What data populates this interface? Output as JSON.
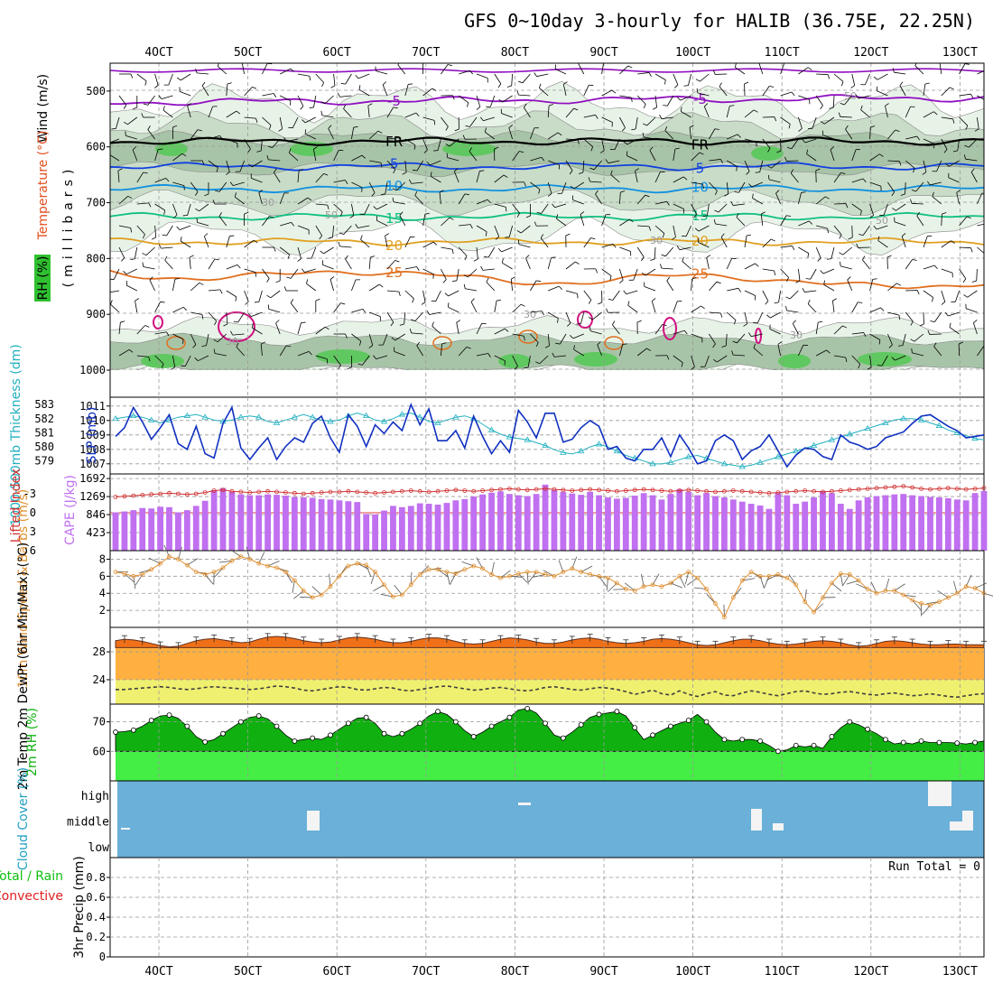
{
  "title": "GFS 0~10day 3-hourly for HALIB (36.75E, 22.25N)",
  "date_labels": [
    "4OCT",
    "5OCT",
    "6OCT",
    "7OCT",
    "8OCT",
    "9OCT",
    "10OCT",
    "11OCT",
    "12OCT",
    "13OCT"
  ],
  "colors": {
    "purple": "#9010c0",
    "black": "#000000",
    "blue": "#1040e0",
    "lightblue": "#1090e0",
    "teal": "#10c080",
    "gold": "#e0a020",
    "orange": "#e07020",
    "magenta": "#d01080",
    "cyan": "#20b0c0",
    "navy": "#1030c0",
    "cape": "#c070f0",
    "lifted": "#d03030",
    "wind10m": "#e09030",
    "temp_fill": "#f07018",
    "temp_mid": "#ffb040",
    "dew_fill": "#f0f070",
    "rh_dark": "#10b010",
    "rh_light": "#44ee44",
    "cloud": "#6ab0d8",
    "precip_green": "#10c010",
    "precip_red": "#e02020"
  },
  "chart_data": [
    {
      "id": "upper_air",
      "type": "heatmap",
      "ylabel": "(millibars)",
      "legend_labels": [
        "Wind (m/s)",
        "Temperature (°C)",
        "RH (%)"
      ],
      "y_ticks": [
        "500",
        "600",
        "700",
        "800",
        "900",
        "1000"
      ],
      "ylim": [
        450,
        1000
      ],
      "isotherms": [
        {
          "label": "-5",
          "level_mb": 520
        },
        {
          "label": "FR",
          "level_mb": 590
        },
        {
          "label": "5",
          "level_mb": 635
        },
        {
          "label": "10",
          "level_mb": 675
        },
        {
          "label": "15",
          "level_mb": 725
        },
        {
          "label": "20",
          "level_mb": 770
        },
        {
          "label": "25",
          "level_mb": 825
        }
      ],
      "rh_labels": [
        "30",
        "50"
      ]
    },
    {
      "id": "slp_thickness",
      "type": "line",
      "ylabel_left": "1000-500mb Thickness (dm)",
      "ylabel_right": "SLP (mb)",
      "left_ticks": [
        "579",
        "580",
        "581",
        "582",
        "583"
      ],
      "right_ticks": [
        "1007",
        "1008",
        "1009",
        "1010",
        "1011"
      ],
      "series": [
        {
          "name": "SLP (mb)",
          "values": [
            1008.9,
            1009.5,
            1010.9,
            1009.9,
            1008.7,
            1009.5,
            1010.4,
            1008.4,
            1008.0,
            1009.6,
            1007.7,
            1007.4,
            1009.8,
            1010.9,
            1008.1,
            1007.3,
            1008.1,
            1008.8,
            1007.3,
            1008.2,
            1008.8,
            1008.5,
            1009.8,
            1010.3,
            1008.8,
            1007.8,
            1010.4,
            1009.6,
            1008.2,
            1009.7,
            1009.1,
            1009.9,
            1009.3,
            1011.1,
            1009.7,
            1010.8,
            1008.6,
            1008.6,
            1009.3,
            1008.1,
            1010.3,
            1008.9,
            1007.7,
            1008.6,
            1007.8,
            1010.7,
            1009.9,
            1008.8,
            1010.5,
            1010.5,
            1008.5,
            1008.7,
            1009.5,
            1010.0,
            1009.6,
            1008.0,
            1008.2,
            1007.4,
            1007.2,
            1008.0,
            1008.0,
            1008.8,
            1007.5,
            1009.0,
            1008.1,
            1007.0,
            1007.2,
            1008.6,
            1009.0,
            1008.6,
            1007.3,
            1007.9,
            1008.2,
            1009.0,
            1007.9,
            1006.8,
            1007.6,
            1008.1,
            1008.0,
            1007.5,
            1007.3,
            1009.0,
            1008.5,
            1008.3,
            1008.0,
            1008.2,
            1008.8,
            1009.0,
            1009.2,
            1009.8,
            1010.3,
            1010.4,
            1010.0,
            1009.6,
            1009.3,
            1008.8,
            1008.9,
            1009.0
          ]
        },
        {
          "name": "1000-500mb Thickness (dm)",
          "values": [
            582.0,
            582.1,
            582.2,
            582.1,
            581.9,
            581.7,
            581.9,
            582.1,
            582.2,
            582.3,
            582.1,
            581.9,
            581.8,
            581.9,
            582.1,
            582.2,
            582.1,
            581.8,
            581.7,
            581.9,
            582.1,
            582.3,
            582.1,
            581.9,
            581.8,
            581.9,
            582.2,
            582.4,
            582.2,
            581.9,
            581.8,
            582.0,
            582.3,
            582.4,
            582.1,
            581.8,
            581.7,
            581.9,
            582.1,
            582.2,
            582.0,
            581.6,
            581.2,
            580.9,
            580.7,
            580.6,
            580.5,
            580.3,
            580.1,
            579.8,
            579.6,
            579.5,
            579.7,
            580.0,
            580.2,
            580.0,
            579.7,
            579.4,
            579.2,
            579.0,
            578.8,
            578.8,
            578.9,
            579.1,
            579.3,
            579.4,
            579.2,
            579.0,
            578.8,
            578.7,
            578.6,
            578.7,
            578.9,
            579.1,
            579.3,
            579.5,
            579.7,
            579.9,
            580.1,
            580.3,
            580.5,
            580.7,
            580.9,
            581.1,
            581.3,
            581.5,
            581.7,
            581.9,
            582.0,
            582.0,
            581.9,
            581.7,
            581.5,
            581.2,
            581.0,
            580.8,
            580.6,
            580.5
          ]
        }
      ]
    },
    {
      "id": "cape_lifted",
      "type": "bar",
      "ylabel_left": "Lifted Index",
      "ylabel_right": "CAPE (J/kg)",
      "left_ticks": [
        "-3",
        "0",
        "3",
        "6"
      ],
      "right_ticks": [
        "423",
        "846",
        "1269",
        "1692"
      ],
      "series": [
        {
          "name": "CAPE (J/kg)",
          "values": [
            900,
            920,
            950,
            1000,
            990,
            1030,
            1020,
            900,
            950,
            1050,
            1170,
            1420,
            1470,
            1380,
            1320,
            1300,
            1300,
            1320,
            1310,
            1290,
            1260,
            1250,
            1240,
            1210,
            1200,
            1180,
            1160,
            1140,
            860,
            850,
            940,
            1050,
            1020,
            1050,
            1110,
            1100,
            1080,
            1120,
            1180,
            1210,
            1270,
            1320,
            1360,
            1390,
            1330,
            1300,
            1280,
            1330,
            1550,
            1420,
            1380,
            1340,
            1310,
            1380,
            1300,
            1250,
            1220,
            1240,
            1290,
            1350,
            1300,
            1200,
            1330,
            1440,
            1380,
            1300,
            1350,
            1280,
            1250,
            1200,
            1150,
            1100,
            1060,
            980,
            1350,
            1300,
            1100,
            1150,
            1250,
            1400,
            1350,
            1100,
            980,
            1180,
            1250,
            1280,
            1300,
            1320,
            1330,
            1300,
            1280,
            1260,
            1250,
            1230,
            1200,
            1180,
            1350,
            1400
          ]
        },
        {
          "name": "Lifted Index",
          "values": [
            -2.5,
            -2.6,
            -2.7,
            -2.8,
            -2.9,
            -3.0,
            -3.1,
            -3.0,
            -2.9,
            -3.0,
            -3.2,
            -3.5,
            -3.6,
            -3.4,
            -3.3,
            -3.2,
            -3.3,
            -3.4,
            -3.3,
            -3.2,
            -3.1,
            -3.0,
            -3.1,
            -3.2,
            -3.3,
            -3.3,
            -3.4,
            -3.3,
            -3.2,
            -3.1,
            -3.2,
            -3.3,
            -3.4,
            -3.5,
            -3.4,
            -3.3,
            -3.4,
            -3.5,
            -3.6,
            -3.5,
            -3.4,
            -3.5,
            -3.6,
            -3.7,
            -3.8,
            -3.7,
            -3.6,
            -3.7,
            -3.8,
            -3.7,
            -3.6,
            -3.5,
            -3.6,
            -3.7,
            -3.6,
            -3.5,
            -3.4,
            -3.5,
            -3.6,
            -3.7,
            -3.6,
            -3.5,
            -3.4,
            -3.5,
            -3.6,
            -3.5,
            -3.4,
            -3.3,
            -3.4,
            -3.5,
            -3.4,
            -3.3,
            -3.2,
            -3.1,
            -3.2,
            -3.3,
            -3.4,
            -3.5,
            -3.4,
            -3.3,
            -3.4,
            -3.5,
            -3.6,
            -3.7,
            -3.8,
            -3.9,
            -4.0,
            -4.1,
            -4.2,
            -4.0,
            -3.8,
            -3.7,
            -3.8,
            -3.9,
            -3.8,
            -3.7,
            -3.8,
            -3.9
          ]
        }
      ]
    },
    {
      "id": "wind10m",
      "type": "line",
      "ylabel": "10m Wind Speed & Barbs (m/s)",
      "y_ticks": [
        "2",
        "4",
        "6",
        "8"
      ],
      "ylim": [
        0,
        9
      ],
      "series": [
        {
          "name": "10m Wind Speed",
          "values": [
            6.5,
            6.3,
            6.0,
            6.2,
            6.8,
            7.5,
            8.3,
            8.0,
            7.3,
            6.5,
            6.2,
            6.5,
            7.0,
            7.8,
            8.3,
            8.0,
            7.5,
            7.2,
            7.0,
            6.5,
            5.5,
            4.3,
            3.5,
            3.8,
            4.8,
            6.0,
            7.2,
            7.5,
            7.3,
            6.5,
            5.0,
            3.6,
            3.8,
            5.0,
            6.2,
            6.8,
            6.8,
            6.5,
            6.3,
            6.8,
            7.2,
            6.9,
            6.2,
            5.8,
            6.0,
            6.3,
            6.5,
            6.5,
            6.2,
            6.0,
            6.5,
            6.9,
            6.5,
            6.2,
            6.0,
            5.8,
            5.2,
            4.5,
            4.3,
            4.8,
            5.0,
            4.8,
            5.2,
            6.0,
            6.5,
            5.8,
            4.5,
            2.8,
            1.2,
            3.5,
            5.5,
            6.5,
            6.0,
            6.0,
            6.2,
            5.8,
            5.0,
            3.0,
            1.8,
            3.5,
            5.2,
            6.3,
            6.2,
            5.5,
            4.5,
            4.0,
            4.3,
            4.3,
            3.8,
            3.2,
            2.8,
            2.6,
            3.0,
            3.5,
            4.0,
            4.8,
            4.6,
            4.0
          ]
        }
      ]
    },
    {
      "id": "temp2m",
      "type": "area",
      "ylabel": "2m Temp 2m DewPt (6hr Min/Max) (°C)",
      "y_ticks": [
        "24",
        "28"
      ],
      "ylim": [
        20.5,
        31.5
      ],
      "series": [
        {
          "name": "2m Temp",
          "values": [
            29.6,
            29.8,
            29.7,
            29.5,
            29.2,
            28.9,
            28.7,
            28.8,
            29.2,
            29.6,
            29.8,
            29.9,
            29.7,
            29.5,
            29.3,
            29.4,
            29.8,
            30.1,
            30.2,
            30.1,
            29.9,
            29.6,
            29.4,
            29.3,
            29.4,
            29.7,
            30.0,
            30.1,
            30.0,
            29.8,
            29.5,
            29.3,
            29.3,
            29.5,
            29.8,
            30.0,
            30.0,
            29.8,
            29.5,
            29.2,
            29.1,
            29.2,
            29.5,
            29.8,
            30.0,
            29.9,
            29.7,
            29.4,
            29.2,
            29.2,
            29.4,
            29.7,
            29.9,
            30.0,
            29.8,
            29.5,
            29.3,
            29.2,
            29.3,
            29.5,
            29.8,
            29.9,
            29.8,
            29.6,
            29.3,
            29.0,
            28.9,
            29.0,
            29.3,
            29.6,
            29.8,
            29.8,
            29.6,
            29.3,
            29.1,
            29.0,
            29.1,
            29.3,
            29.5,
            29.6,
            29.5,
            29.3,
            29.0,
            28.8,
            28.9,
            29.2,
            29.5,
            29.6,
            29.5,
            29.3,
            29.1,
            29.0,
            29.0,
            29.1,
            29.1,
            29.0,
            29.0,
            29.0
          ]
        },
        {
          "name": "2m DewPt",
          "values": [
            22.6,
            22.6,
            22.7,
            22.8,
            22.9,
            23.0,
            22.9,
            22.7,
            22.6,
            22.7,
            22.9,
            23.0,
            22.9,
            22.8,
            22.7,
            22.6,
            22.7,
            22.9,
            23.1,
            23.0,
            22.8,
            22.5,
            22.4,
            22.6,
            22.8,
            23.0,
            22.9,
            22.6,
            22.5,
            22.7,
            22.9,
            22.8,
            22.5,
            22.4,
            22.6,
            22.8,
            23.0,
            23.1,
            22.9,
            22.7,
            22.5,
            22.6,
            22.8,
            22.9,
            22.7,
            22.5,
            22.4,
            22.6,
            22.9,
            23.0,
            22.8,
            22.6,
            22.5,
            22.7,
            22.9,
            22.8,
            22.6,
            22.3,
            21.9,
            22.2,
            22.5,
            22.0,
            21.8,
            22.4,
            21.9,
            21.6,
            22.0,
            22.3,
            21.8,
            21.7,
            22.1,
            22.4,
            22.2,
            21.9,
            21.7,
            22.0,
            22.3,
            22.4,
            22.1,
            21.9,
            22.0,
            22.2,
            22.3,
            22.1,
            21.9,
            21.8,
            22.0,
            22.1,
            21.9,
            21.7,
            21.8,
            22.0,
            21.8,
            21.6,
            21.5,
            21.7,
            21.9,
            22.0
          ]
        }
      ]
    },
    {
      "id": "rh2m",
      "type": "area",
      "ylabel": "2m RH (%)",
      "y_ticks": [
        "60",
        "70"
      ],
      "ylim": [
        50,
        76
      ],
      "series": [
        {
          "name": "2m RH",
          "values": [
            66.5,
            66.7,
            67.2,
            68.5,
            70.5,
            72.0,
            72.3,
            71.2,
            68.5,
            65.0,
            63.2,
            64.0,
            66.0,
            68.0,
            70.0,
            71.5,
            72.0,
            71.0,
            68.5,
            65.5,
            63.5,
            64.0,
            64.5,
            64.0,
            65.5,
            67.5,
            69.5,
            71.2,
            71.5,
            69.5,
            66.0,
            65.0,
            66.0,
            67.5,
            69.5,
            72.0,
            73.5,
            72.5,
            70.0,
            67.0,
            65.0,
            66.5,
            68.5,
            70.0,
            71.5,
            74.0,
            74.5,
            73.0,
            69.5,
            65.5,
            64.5,
            66.5,
            69.0,
            71.5,
            72.5,
            73.0,
            73.5,
            72.0,
            68.0,
            64.0,
            65.5,
            67.0,
            68.5,
            69.5,
            70.5,
            72.5,
            70.0,
            66.5,
            64.0,
            63.5,
            64.0,
            64.0,
            63.5,
            62.0,
            60.0,
            60.5,
            62.0,
            61.5,
            62.0,
            61.0,
            65.0,
            68.0,
            70.0,
            69.0,
            67.5,
            66.0,
            64.0,
            62.5,
            63.0,
            62.5,
            63.5,
            63.0,
            63.0,
            63.0,
            62.8,
            62.5,
            63.0,
            63.5
          ]
        }
      ]
    },
    {
      "id": "cloud",
      "type": "bar",
      "ylabel": "Cloud Cover (%)",
      "y_ticks": [
        "high",
        "middle",
        "low"
      ]
    },
    {
      "id": "precip",
      "type": "bar",
      "ylabel_left_1": "Total / Rain",
      "ylabel_left_2": "Convective",
      "ylabel": "3hr Precip (mm)",
      "y_ticks": [
        "0",
        "0.2",
        "0.4",
        "0.6",
        "0.8"
      ],
      "ylim": [
        0,
        1.0
      ],
      "run_total": "Run Total = 0",
      "values": []
    }
  ]
}
